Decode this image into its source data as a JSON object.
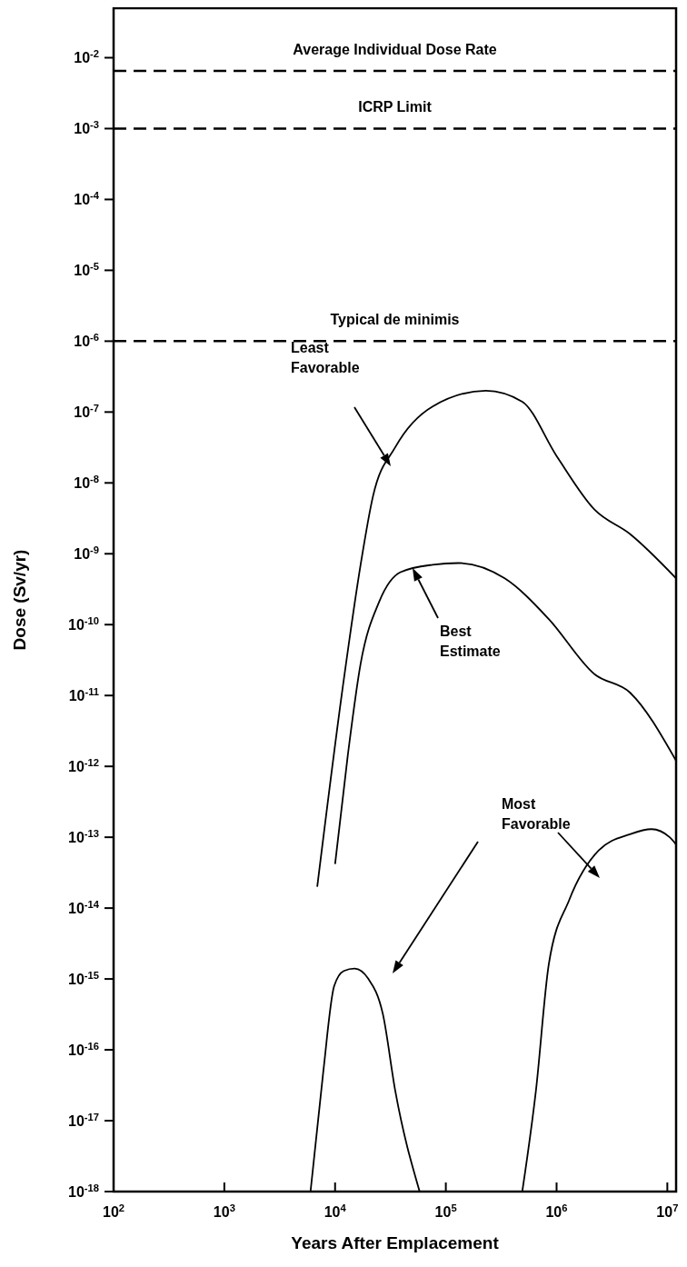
{
  "chart_data": {
    "type": "line",
    "xlabel": "Years After Emplacement",
    "ylabel": "Dose (Sv/yr)",
    "log": "xy",
    "xlim": [
      100,
      12000000
    ],
    "ylim": [
      1e-18,
      0.05
    ],
    "xticks": [
      {
        "value": 100,
        "label": "10$^{2}$"
      },
      {
        "value": 1000,
        "label": "10$^{3}$"
      },
      {
        "value": 10000,
        "label": "10$^{4}$"
      },
      {
        "value": 100000,
        "label": "10$^{5}$"
      },
      {
        "value": 1000000,
        "label": "10$^{6}$"
      },
      {
        "value": 10000000,
        "label": "10$^{7}$"
      }
    ],
    "yticks": [
      {
        "value": 1e-18,
        "label": "10$^{-18}$"
      },
      {
        "value": 1e-17,
        "label": "10$^{-17}$"
      },
      {
        "value": 1e-16,
        "label": "10$^{-16}$"
      },
      {
        "value": 1e-15,
        "label": "10$^{-15}$"
      },
      {
        "value": 1e-14,
        "label": "10$^{-14}$"
      },
      {
        "value": 1e-13,
        "label": "10$^{-13}$"
      },
      {
        "value": 1e-12,
        "label": "10$^{-12}$"
      },
      {
        "value": 1e-11,
        "label": "10$^{-11}$"
      },
      {
        "value": 1e-10,
        "label": "10$^{-10}$"
      },
      {
        "value": 1e-09,
        "label": "10$^{-9}$"
      },
      {
        "value": 1e-08,
        "label": "10$^{-8}$"
      },
      {
        "value": 1e-07,
        "label": "10$^{-7}$"
      },
      {
        "value": 1e-06,
        "label": "10$^{-6}$"
      },
      {
        "value": 1e-05,
        "label": "10$^{-5}$"
      },
      {
        "value": 0.0001,
        "label": "10$^{-4}$"
      },
      {
        "value": 0.001,
        "label": "10$^{-3}$"
      },
      {
        "value": 0.01,
        "label": "10$^{-2}$"
      }
    ],
    "grid": false,
    "marker": "none",
    "line_style": "solid",
    "series": [
      {
        "color": "#000000",
        "x": [
          6900,
          12000,
          17000,
          22000,
          35000,
          76000,
          230000,
          490000,
          1000000,
          2200000,
          4600000,
          12000000
        ],
        "values": [
          2e-14,
          1.7e-11,
          7e-10,
          6.5e-09,
          3.2e-08,
          1.2e-07,
          2e-07,
          1.4e-07,
          2.4e-08,
          4.2e-09,
          1.9e-09,
          4.5e-10
        ]
      },
      {
        "color": "#000000",
        "x": [
          10000,
          13000,
          17000,
          25000,
          39000,
          76000,
          130000,
          340000,
          850000,
          2200000,
          4600000,
          12000000
        ],
        "values": [
          4.2e-14,
          1.4e-12,
          2.8e-11,
          2.1e-10,
          5.5e-10,
          7e-10,
          7.4e-10,
          4.5e-10,
          1.2e-10,
          2e-11,
          1.1e-11,
          1.2e-12
        ]
      },
      {
        "color": "#000000",
        "x": [
          6000,
          7800,
          9800,
          12000,
          15000,
          20000,
          27000,
          35000,
          58000
        ],
        "values": [
          1e-18,
          4.7e-17,
          7.9e-16,
          1.3e-15,
          1.4e-15,
          1e-15,
          3.2e-16,
          2.6e-17,
          1e-18
        ]
      },
      {
        "color": "#000000",
        "x": [
          490000,
          650000,
          850000,
          1300000,
          2400000,
          4600000,
          7200000,
          10500000,
          12000000
        ],
        "values": [
          1e-18,
          2.6e-17,
          1.6e-15,
          1.3e-14,
          6.5e-14,
          1.1e-13,
          1.3e-13,
          1e-13,
          7.9e-14
        ]
      }
    ],
    "ref_lines": [
      {
        "axis": "y",
        "value": 0.0065,
        "label": "Average Individual Dose Rate",
        "color": "#000000",
        "line_style": "dashed"
      },
      {
        "axis": "y",
        "value": 0.001,
        "label": "ICRP Limit",
        "color": "#000000",
        "line_style": "dashed"
      },
      {
        "axis": "y",
        "value": 1e-06,
        "label": "Typical de minimis",
        "color": "#000000",
        "line_style": "dashed"
      }
    ],
    "annotations": [
      "Least Favorable",
      "Best Estimate",
      "Most Favorable"
    ]
  }
}
